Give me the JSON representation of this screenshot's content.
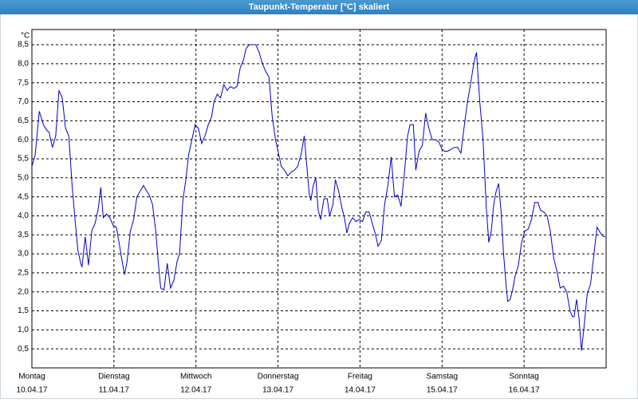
{
  "chart_data": {
    "type": "line",
    "title": "Taupunkt-Temperatur [°C] skaliert",
    "y_unit": "°C",
    "color": "#0000cc",
    "xlim": [
      0,
      7
    ],
    "xticks": [
      {
        "value": 0,
        "label": "10.04.17"
      },
      {
        "value": 1,
        "label": "11.04.17"
      },
      {
        "value": 2,
        "label": "12.04.17"
      },
      {
        "value": 3,
        "label": "13.04.17"
      },
      {
        "value": 4,
        "label": "14.04.17"
      },
      {
        "value": 5,
        "label": "15.04.17"
      },
      {
        "value": 6,
        "label": "16.04.17"
      }
    ],
    "x_day_names": [
      "Montag",
      "Dienstag",
      "Mittwoch",
      "Donnerstag",
      "Freitag",
      "Samstag",
      "Sonntag"
    ],
    "ylim": [
      0,
      8.9
    ],
    "yticks": [
      {
        "value": 0.5,
        "label": "0,5"
      },
      {
        "value": 1,
        "label": "1,0"
      },
      {
        "value": 1.5,
        "label": "1,5"
      },
      {
        "value": 2,
        "label": "2,0"
      },
      {
        "value": 2.5,
        "label": "2,5"
      },
      {
        "value": 3,
        "label": "3,0"
      },
      {
        "value": 3.5,
        "label": "3,5"
      },
      {
        "value": 4,
        "label": "4,0"
      },
      {
        "value": 4.5,
        "label": "4,5"
      },
      {
        "value": 5,
        "label": "5,0"
      },
      {
        "value": 5.5,
        "label": "5,5"
      },
      {
        "value": 6,
        "label": "6,0"
      },
      {
        "value": 6.5,
        "label": "6,5"
      },
      {
        "value": 7,
        "label": "7,0"
      },
      {
        "value": 7.5,
        "label": "7,5"
      },
      {
        "value": 8,
        "label": "8,0"
      },
      {
        "value": 8.5,
        "label": "8,5"
      }
    ],
    "grid": true,
    "x": [
      0,
      0.04,
      0.09,
      0.14,
      0.18,
      0.21,
      0.25,
      0.29,
      0.33,
      0.37,
      0.41,
      0.45,
      0.49,
      0.53,
      0.56,
      0.59,
      0.61,
      0.65,
      0.69,
      0.73,
      0.77,
      0.81,
      0.84,
      0.87,
      0.91,
      0.95,
      0.99,
      1.03,
      1.07,
      1.1,
      1.13,
      1.16,
      1.2,
      1.24,
      1.28,
      1.32,
      1.36,
      1.4,
      1.43,
      1.47,
      1.51,
      1.54,
      1.57,
      1.61,
      1.65,
      1.69,
      1.73,
      1.77,
      1.8,
      1.84,
      1.88,
      1.91,
      1.95,
      1.99,
      2.03,
      2.07,
      2.11,
      2.15,
      2.19,
      2.22,
      2.26,
      2.3,
      2.34,
      2.38,
      2.42,
      2.46,
      2.5,
      2.54,
      2.58,
      2.61,
      2.65,
      2.69,
      2.73,
      2.77,
      2.81,
      2.85,
      2.89,
      2.93,
      2.97,
      3.0,
      3.04,
      3.08,
      3.12,
      3.16,
      3.2,
      3.24,
      3.28,
      3.32,
      3.34,
      3.38,
      3.4,
      3.43,
      3.46,
      3.49,
      3.52,
      3.56,
      3.6,
      3.63,
      3.67,
      3.7,
      3.74,
      3.78,
      3.81,
      3.84,
      3.87,
      3.91,
      3.95,
      3.99,
      4.03,
      4.07,
      4.11,
      4.15,
      4.19,
      4.22,
      4.26,
      4.3,
      4.34,
      4.38,
      4.42,
      4.46,
      4.5,
      4.54,
      4.58,
      4.61,
      4.65,
      4.68,
      4.72,
      4.76,
      4.8,
      4.84,
      4.88,
      4.92,
      4.96,
      5.0,
      5.03,
      5.07,
      5.11,
      5.15,
      5.19,
      5.23,
      5.27,
      5.31,
      5.35,
      5.39,
      5.42,
      5.46,
      5.5,
      5.54,
      5.57,
      5.6,
      5.63,
      5.66,
      5.69,
      5.72,
      5.75,
      5.78,
      5.8,
      5.83,
      5.86,
      5.89,
      5.93,
      5.97,
      6.01,
      6.05,
      6.09,
      6.13,
      6.17,
      6.2,
      6.24,
      6.28,
      6.32,
      6.36,
      6.4,
      6.44,
      6.48,
      6.52,
      6.56,
      6.59,
      6.61,
      6.64,
      6.67,
      6.7,
      6.73,
      6.77,
      6.81,
      6.85,
      6.89,
      6.93,
      6.97,
      6.99
    ],
    "values": [
      5.3,
      5.6,
      6.75,
      6.4,
      6.25,
      6.2,
      5.8,
      6.1,
      7.3,
      7.1,
      6.3,
      6.1,
      4.8,
      3.8,
      3.1,
      2.8,
      2.65,
      3.45,
      2.7,
      3.6,
      3.8,
      4.2,
      4.75,
      3.95,
      4.05,
      3.95,
      3.75,
      3.7,
      3.2,
      2.8,
      2.45,
      2.8,
      3.6,
      3.9,
      4.5,
      4.65,
      4.8,
      4.65,
      4.55,
      4.3,
      3.6,
      2.8,
      2.1,
      2.05,
      2.75,
      2.1,
      2.3,
      2.8,
      3.0,
      4.4,
      5.0,
      5.6,
      6.0,
      6.4,
      6.3,
      5.9,
      6.1,
      6.4,
      6.6,
      7.0,
      7.2,
      7.1,
      7.45,
      7.3,
      7.4,
      7.35,
      7.4,
      7.9,
      8.1,
      8.4,
      8.5,
      8.5,
      8.5,
      8.3,
      8.0,
      7.8,
      7.65,
      6.6,
      6.0,
      5.7,
      5.3,
      5.2,
      5.05,
      5.15,
      5.2,
      5.3,
      5.6,
      6.1,
      5.6,
      4.6,
      4.4,
      4.8,
      5.0,
      4.15,
      3.9,
      4.45,
      4.45,
      4.0,
      4.3,
      4.95,
      4.65,
      4.2,
      3.95,
      3.55,
      3.8,
      3.95,
      3.85,
      3.9,
      3.85,
      4.1,
      4.1,
      3.8,
      3.5,
      3.2,
      3.35,
      4.3,
      4.8,
      5.55,
      4.5,
      4.55,
      4.25,
      5.1,
      6.1,
      6.4,
      6.4,
      5.2,
      5.7,
      5.85,
      6.7,
      6.3,
      6.0,
      6.0,
      5.95,
      5.75,
      5.7,
      5.7,
      5.75,
      5.8,
      5.8,
      5.65,
      6.35,
      7.0,
      7.5,
      8.05,
      8.3,
      7.0,
      6.0,
      4.2,
      3.3,
      3.6,
      4.3,
      4.65,
      4.85,
      4.1,
      3.0,
      2.2,
      1.75,
      1.8,
      2.05,
      2.4,
      2.7,
      3.3,
      3.6,
      3.65,
      3.9,
      4.35,
      4.35,
      4.15,
      4.1,
      4.0,
      3.6,
      2.9,
      2.55,
      2.1,
      2.15,
      2.0,
      1.5,
      1.35,
      1.35,
      1.8,
      1.3,
      0.45,
      1.05,
      1.95,
      2.2,
      2.95,
      3.7,
      3.55,
      3.45,
      3.45
    ]
  }
}
